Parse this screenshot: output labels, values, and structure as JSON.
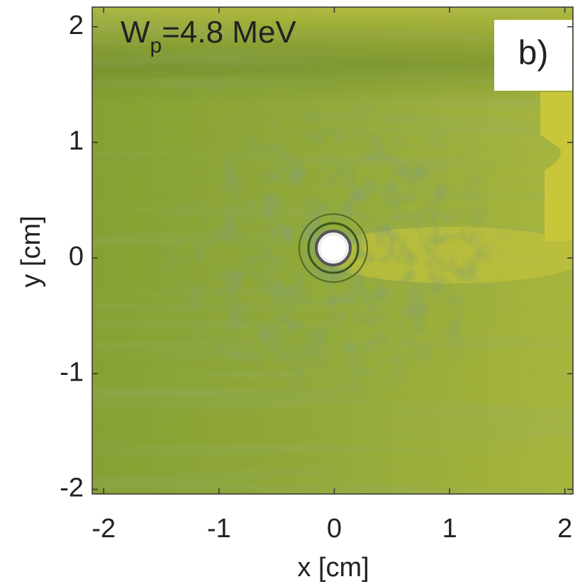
{
  "chart_data": {
    "type": "image",
    "annotation": {
      "main": "W",
      "sub": "p",
      "rest": "=4.8 MeV"
    },
    "panel_label": "b)",
    "x_label": "x [cm]",
    "y_label": "y [cm]",
    "xlim": [
      -2.1,
      2.07
    ],
    "ylim": [
      -2.04,
      2.17
    ],
    "xticks": [
      -2,
      -1,
      0,
      1,
      2
    ],
    "yticks": [
      -2,
      -1,
      0,
      1,
      2
    ]
  }
}
